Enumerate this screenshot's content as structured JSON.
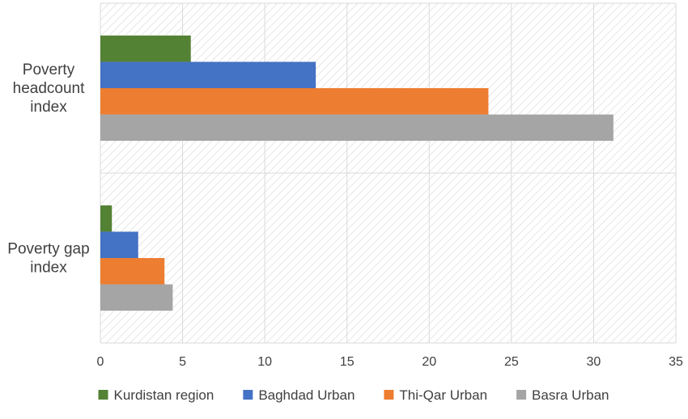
{
  "chart_data": {
    "type": "bar",
    "orientation": "horizontal",
    "categories": [
      "Poverty headcount index",
      "Poverty gap index"
    ],
    "category_label_lines": [
      [
        "Poverty",
        "headcount",
        "index"
      ],
      [
        "Poverty gap",
        "index"
      ]
    ],
    "series": [
      {
        "name": "Kurdistan region",
        "color": "#548235",
        "values": [
          5.5,
          0.7
        ]
      },
      {
        "name": "Baghdad Urban",
        "color": "#4472c4",
        "values": [
          13.1,
          2.3
        ]
      },
      {
        "name": "Thi-Qar Urban",
        "color": "#ed7d31",
        "values": [
          23.6,
          3.9
        ]
      },
      {
        "name": "Basra Urban",
        "color": "#a5a5a5",
        "values": [
          31.2,
          4.4
        ]
      }
    ],
    "xlim": [
      0,
      35
    ],
    "xticks": [
      0,
      5,
      10,
      15,
      20,
      25,
      30,
      35
    ],
    "title": "",
    "xlabel": "",
    "ylabel": "",
    "grid": true,
    "legend_position": "bottom"
  }
}
